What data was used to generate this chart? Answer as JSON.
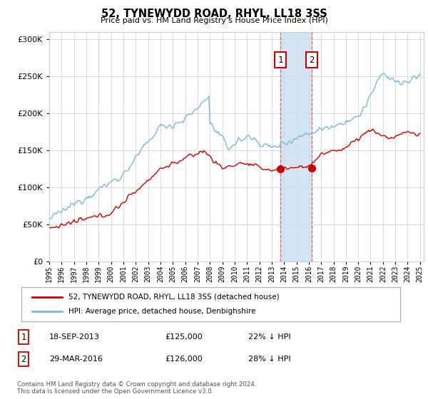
{
  "title": "52, TYNEWYDD ROAD, RHYL, LL18 3SS",
  "subtitle": "Price paid vs. HM Land Registry's House Price Index (HPI)",
  "legend_line1": "52, TYNEWYDD ROAD, RHYL, LL18 3SS (detached house)",
  "legend_line2": "HPI: Average price, detached house, Denbighshire",
  "annotation1_label": "1",
  "annotation1_date": "18-SEP-2013",
  "annotation1_price": "£125,000",
  "annotation1_hpi": "22% ↓ HPI",
  "annotation1_year": 2013.72,
  "annotation1_value": 125000,
  "annotation2_label": "2",
  "annotation2_date": "29-MAR-2016",
  "annotation2_price": "£126,000",
  "annotation2_hpi": "28% ↓ HPI",
  "annotation2_year": 2016.24,
  "annotation2_value": 126000,
  "hpi_color": "#7fb8d8",
  "price_color": "#cc0000",
  "dot_color": "#cc0000",
  "shade_color": "#cce0f0",
  "background_color": "#ffffff",
  "grid_color": "#cccccc",
  "ylim": [
    0,
    310000
  ],
  "yticks": [
    0,
    50000,
    100000,
    150000,
    200000,
    250000,
    300000
  ],
  "footer": "Contains HM Land Registry data © Crown copyright and database right 2024.\nThis data is licensed under the Open Government Licence v3.0."
}
